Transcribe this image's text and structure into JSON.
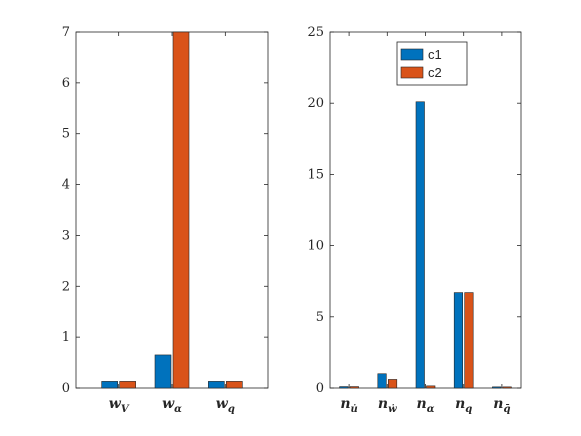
{
  "colors": {
    "c1": "#0072BD",
    "c2": "#D95319",
    "axis": "#262626"
  },
  "chart_data": [
    {
      "type": "bar",
      "title": "",
      "xlabel": "",
      "ylabel": "",
      "ylim": [
        0,
        7
      ],
      "yticks": [
        "0",
        "1",
        "2",
        "3",
        "4",
        "5",
        "6",
        "7"
      ],
      "grid": false,
      "categories": [
        {
          "base": "w",
          "sub": "V"
        },
        {
          "base": "w",
          "sub": "α"
        },
        {
          "base": "w",
          "sub": "q"
        }
      ],
      "series": [
        {
          "name": "c1",
          "values": [
            0.13,
            0.65,
            0.13
          ]
        },
        {
          "name": "c2",
          "values": [
            0.13,
            7.0,
            0.13
          ]
        }
      ]
    },
    {
      "type": "bar",
      "title": "",
      "xlabel": "",
      "ylabel": "",
      "ylim": [
        0,
        25
      ],
      "yticks": [
        "0",
        "5",
        "10",
        "15",
        "20",
        "25"
      ],
      "grid": false,
      "legend": {
        "position": "top-right-inside",
        "entries": [
          "c1",
          "c2"
        ]
      },
      "categories": [
        {
          "base": "n",
          "sub": "u̇"
        },
        {
          "base": "n",
          "sub": "ẇ"
        },
        {
          "base": "n",
          "sub": "α"
        },
        {
          "base": "n",
          "sub": "q"
        },
        {
          "base": "n",
          "sub": "q̄"
        }
      ],
      "series": [
        {
          "name": "c1",
          "values": [
            0.1,
            1.0,
            20.1,
            6.7,
            0.08
          ]
        },
        {
          "name": "c2",
          "values": [
            0.1,
            0.6,
            0.15,
            6.7,
            0.08
          ]
        }
      ]
    }
  ]
}
